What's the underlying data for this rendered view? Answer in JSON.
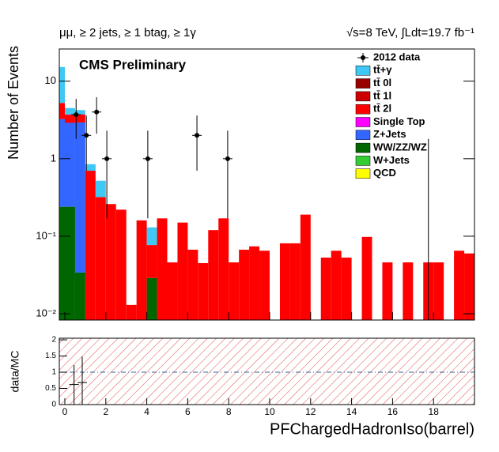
{
  "chart_data": [
    {
      "type": "stacked-histogram",
      "title_left": "μμ, ≥ 2 jets, ≥ 1 btag, ≥ 1γ",
      "title_right": "√s=8 TeV, ∫Ldt=19.7 fb⁻¹",
      "annotation": "CMS Preliminary",
      "ylabel": "Number of Events",
      "log_y": true,
      "xlim": [
        -0.27,
        20
      ],
      "ylim": [
        0.0083,
        26
      ],
      "yticks": [
        {
          "value": 0.01,
          "label": "10⁻²"
        },
        {
          "value": 0.1,
          "label": "10⁻¹"
        },
        1,
        10
      ],
      "bins": [
        -0.25,
        0,
        0.5,
        1,
        1.5,
        2,
        2.5,
        3,
        3.5,
        4,
        4.5,
        5,
        5.5,
        6,
        6.5,
        7,
        7.5,
        8,
        8.5,
        9,
        9.5,
        10,
        10.5,
        11,
        11.5,
        12,
        12.5,
        13,
        13.5,
        14,
        14.5,
        15,
        15.5,
        16,
        16.5,
        17,
        17.5,
        18,
        18.5,
        19,
        19.5,
        20
      ],
      "points": {
        "name": "2012 data",
        "color": "#000000",
        "x": [
          0.55,
          1.05,
          1.55,
          2.05,
          4.05,
          6.45,
          7.95,
          17.75
        ],
        "values": [
          3.7,
          2,
          4,
          1,
          1,
          2,
          1,
          0
        ],
        "error_low": [
          1.9,
          1.3,
          1.9,
          0.83,
          0.83,
          1.3,
          0.83,
          0
        ],
        "error_high": [
          2.2,
          1.6,
          2.2,
          1.3,
          1.3,
          1.6,
          1.3,
          1.8
        ]
      },
      "series": [
        {
          "name": "tt̄+γ",
          "color": "#40c8f4",
          "values": [
            10,
            0.8,
            0.5,
            0.15,
            0.2,
            0,
            0,
            0,
            0,
            0.053,
            0,
            0,
            0,
            0,
            0,
            0,
            0,
            0,
            0,
            0,
            0,
            0,
            0,
            0,
            0,
            0,
            0,
            0,
            0,
            0,
            0,
            0,
            0,
            0,
            0,
            0,
            0,
            0,
            0,
            0,
            0
          ]
        },
        {
          "name": "tt̄ 0l",
          "color": "#990000",
          "values": [
            0,
            0,
            0,
            0,
            0,
            0,
            0,
            0,
            0,
            0,
            0,
            0,
            0,
            0,
            0,
            0,
            0,
            0,
            0,
            0,
            0,
            0,
            0,
            0,
            0,
            0,
            0,
            0,
            0,
            0,
            0,
            0,
            0,
            0,
            0,
            0,
            0,
            0,
            0,
            0,
            0
          ]
        },
        {
          "name": "tt̄ 1l",
          "color": "#cc0000",
          "values": [
            0,
            0,
            0,
            0,
            0,
            0,
            0,
            0,
            0,
            0,
            0,
            0,
            0,
            0,
            0,
            0,
            0,
            0,
            0,
            0,
            0,
            0,
            0,
            0,
            0,
            0,
            0,
            0,
            0,
            0,
            0,
            0,
            0,
            0,
            0,
            0,
            0,
            0,
            0,
            0,
            0
          ]
        },
        {
          "name": "tt̄ 2l",
          "color": "#ff0000",
          "values": [
            2.0,
            0.8,
            0.8,
            0.7,
            0.32,
            0.26,
            0.22,
            0.013,
            0.16,
            0.048,
            0.17,
            0.046,
            0.15,
            0.067,
            0.045,
            0.12,
            0.17,
            0.046,
            0.067,
            0.074,
            0.065,
            0,
            0.081,
            0.081,
            0.19,
            0,
            0.053,
            0.065,
            0.053,
            0,
            0.098,
            0,
            0.046,
            0,
            0.046,
            0,
            0.046,
            0.046,
            0,
            0.065,
            0.06
          ]
        },
        {
          "name": "Single Top",
          "color": "#ff00ff",
          "values": [
            0,
            0,
            0,
            0,
            0,
            0,
            0,
            0,
            0,
            0,
            0,
            0,
            0,
            0,
            0,
            0,
            0,
            0,
            0,
            0,
            0,
            0,
            0,
            0,
            0,
            0,
            0,
            0,
            0,
            0,
            0,
            0,
            0,
            0,
            0,
            0,
            0,
            0,
            0,
            0,
            0
          ]
        },
        {
          "name": "Z+Jets",
          "color": "#3366ff",
          "values": [
            3.0,
            2.66,
            2.9,
            0,
            0,
            0,
            0,
            0,
            0,
            0,
            0,
            0,
            0,
            0,
            0,
            0,
            0,
            0,
            0,
            0,
            0,
            0,
            0,
            0,
            0,
            0,
            0,
            0,
            0,
            0,
            0,
            0,
            0,
            0,
            0,
            0,
            0,
            0,
            0,
            0,
            0
          ]
        },
        {
          "name": "WW/ZZ/WZ",
          "color": "#006600",
          "values": [
            0.24,
            0.24,
            0.034,
            0,
            0,
            0,
            0,
            0,
            0,
            0.029,
            0,
            0,
            0,
            0,
            0,
            0,
            0,
            0,
            0,
            0,
            0,
            0,
            0,
            0,
            0,
            0,
            0,
            0,
            0,
            0,
            0,
            0,
            0,
            0,
            0,
            0,
            0,
            0,
            0,
            0,
            0
          ]
        },
        {
          "name": "W+Jets",
          "color": "#33cc33",
          "values": [
            0,
            0,
            0,
            0,
            0,
            0,
            0,
            0,
            0,
            0,
            0,
            0,
            0,
            0,
            0,
            0,
            0,
            0,
            0,
            0,
            0,
            0,
            0,
            0,
            0,
            0,
            0,
            0,
            0,
            0,
            0,
            0,
            0,
            0,
            0,
            0,
            0,
            0,
            0,
            0,
            0
          ]
        },
        {
          "name": "QCD",
          "color": "#ffff00",
          "values": [
            0,
            0,
            0,
            0,
            0,
            0,
            0,
            0,
            0,
            0,
            0,
            0,
            0,
            0,
            0,
            0,
            0,
            0,
            0,
            0,
            0,
            0,
            0,
            0,
            0,
            0,
            0,
            0,
            0,
            0,
            0,
            0,
            0,
            0,
            0,
            0,
            0,
            0,
            0,
            0,
            0
          ]
        }
      ]
    },
    {
      "type": "ratio",
      "ylabel": "data/MC",
      "xlabel": "PFChargedHadronIso(barrel)",
      "xlim": [
        -0.27,
        20
      ],
      "xticks": [
        0,
        2,
        4,
        6,
        8,
        10,
        12,
        14,
        16,
        18
      ],
      "ylim": [
        0,
        2.05
      ],
      "yticks": [
        0,
        0.5,
        1,
        1.5,
        2
      ],
      "reference_line": 1,
      "x": [
        0.45,
        0.85
      ],
      "values": [
        0.62,
        0.68
      ],
      "error_low": [
        0.62,
        0.68
      ],
      "error_high": [
        0.6,
        0.8
      ]
    }
  ]
}
